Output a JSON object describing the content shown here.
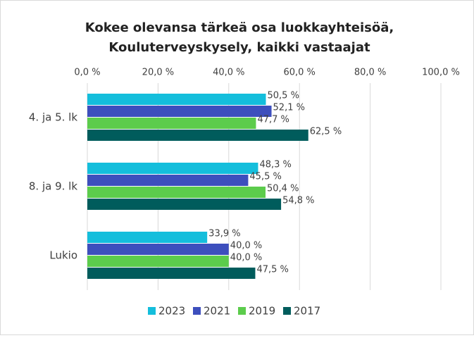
{
  "chart_data": {
    "type": "barh",
    "title": [
      "Kokee olevansa tärkeä osa luokkayhteisöä,",
      "Kouluterveyskysely, kaikki vastaajat"
    ],
    "categories": [
      "4. ja 5. lk",
      "8. ja 9. lk",
      "Lukio"
    ],
    "series": [
      {
        "name": "2023",
        "color": "#14bedc",
        "values": [
          50.5,
          48.3,
          33.9
        ],
        "value_labels": [
          "50,5 %",
          "48,3 %",
          "33,9 %"
        ]
      },
      {
        "name": "2021",
        "color": "#3d4fbd",
        "values": [
          52.1,
          45.5,
          40.0
        ],
        "value_labels": [
          "52,1 %",
          "45,5 %",
          "40,0 %"
        ]
      },
      {
        "name": "2019",
        "color": "#5ccc4c",
        "values": [
          47.7,
          50.4,
          40.0
        ],
        "value_labels": [
          "47,7 %",
          "50,4 %",
          "40,0 %"
        ]
      },
      {
        "name": "2017",
        "color": "#005c5c",
        "values": [
          62.5,
          54.8,
          47.5
        ],
        "value_labels": [
          "62,5 %",
          "54,8 %",
          "47,5 %"
        ]
      }
    ],
    "xlim": [
      0,
      100
    ],
    "xticks": [
      {
        "value": 0,
        "label": "0,0 %"
      },
      {
        "value": 20,
        "label": "20,0 %"
      },
      {
        "value": 40,
        "label": "40,0 %"
      },
      {
        "value": 60,
        "label": "60,0 %"
      },
      {
        "value": 80,
        "label": "80,0 %"
      },
      {
        "value": 100,
        "label": "100,0 %"
      }
    ],
    "grid": true,
    "legend": "bottom"
  }
}
